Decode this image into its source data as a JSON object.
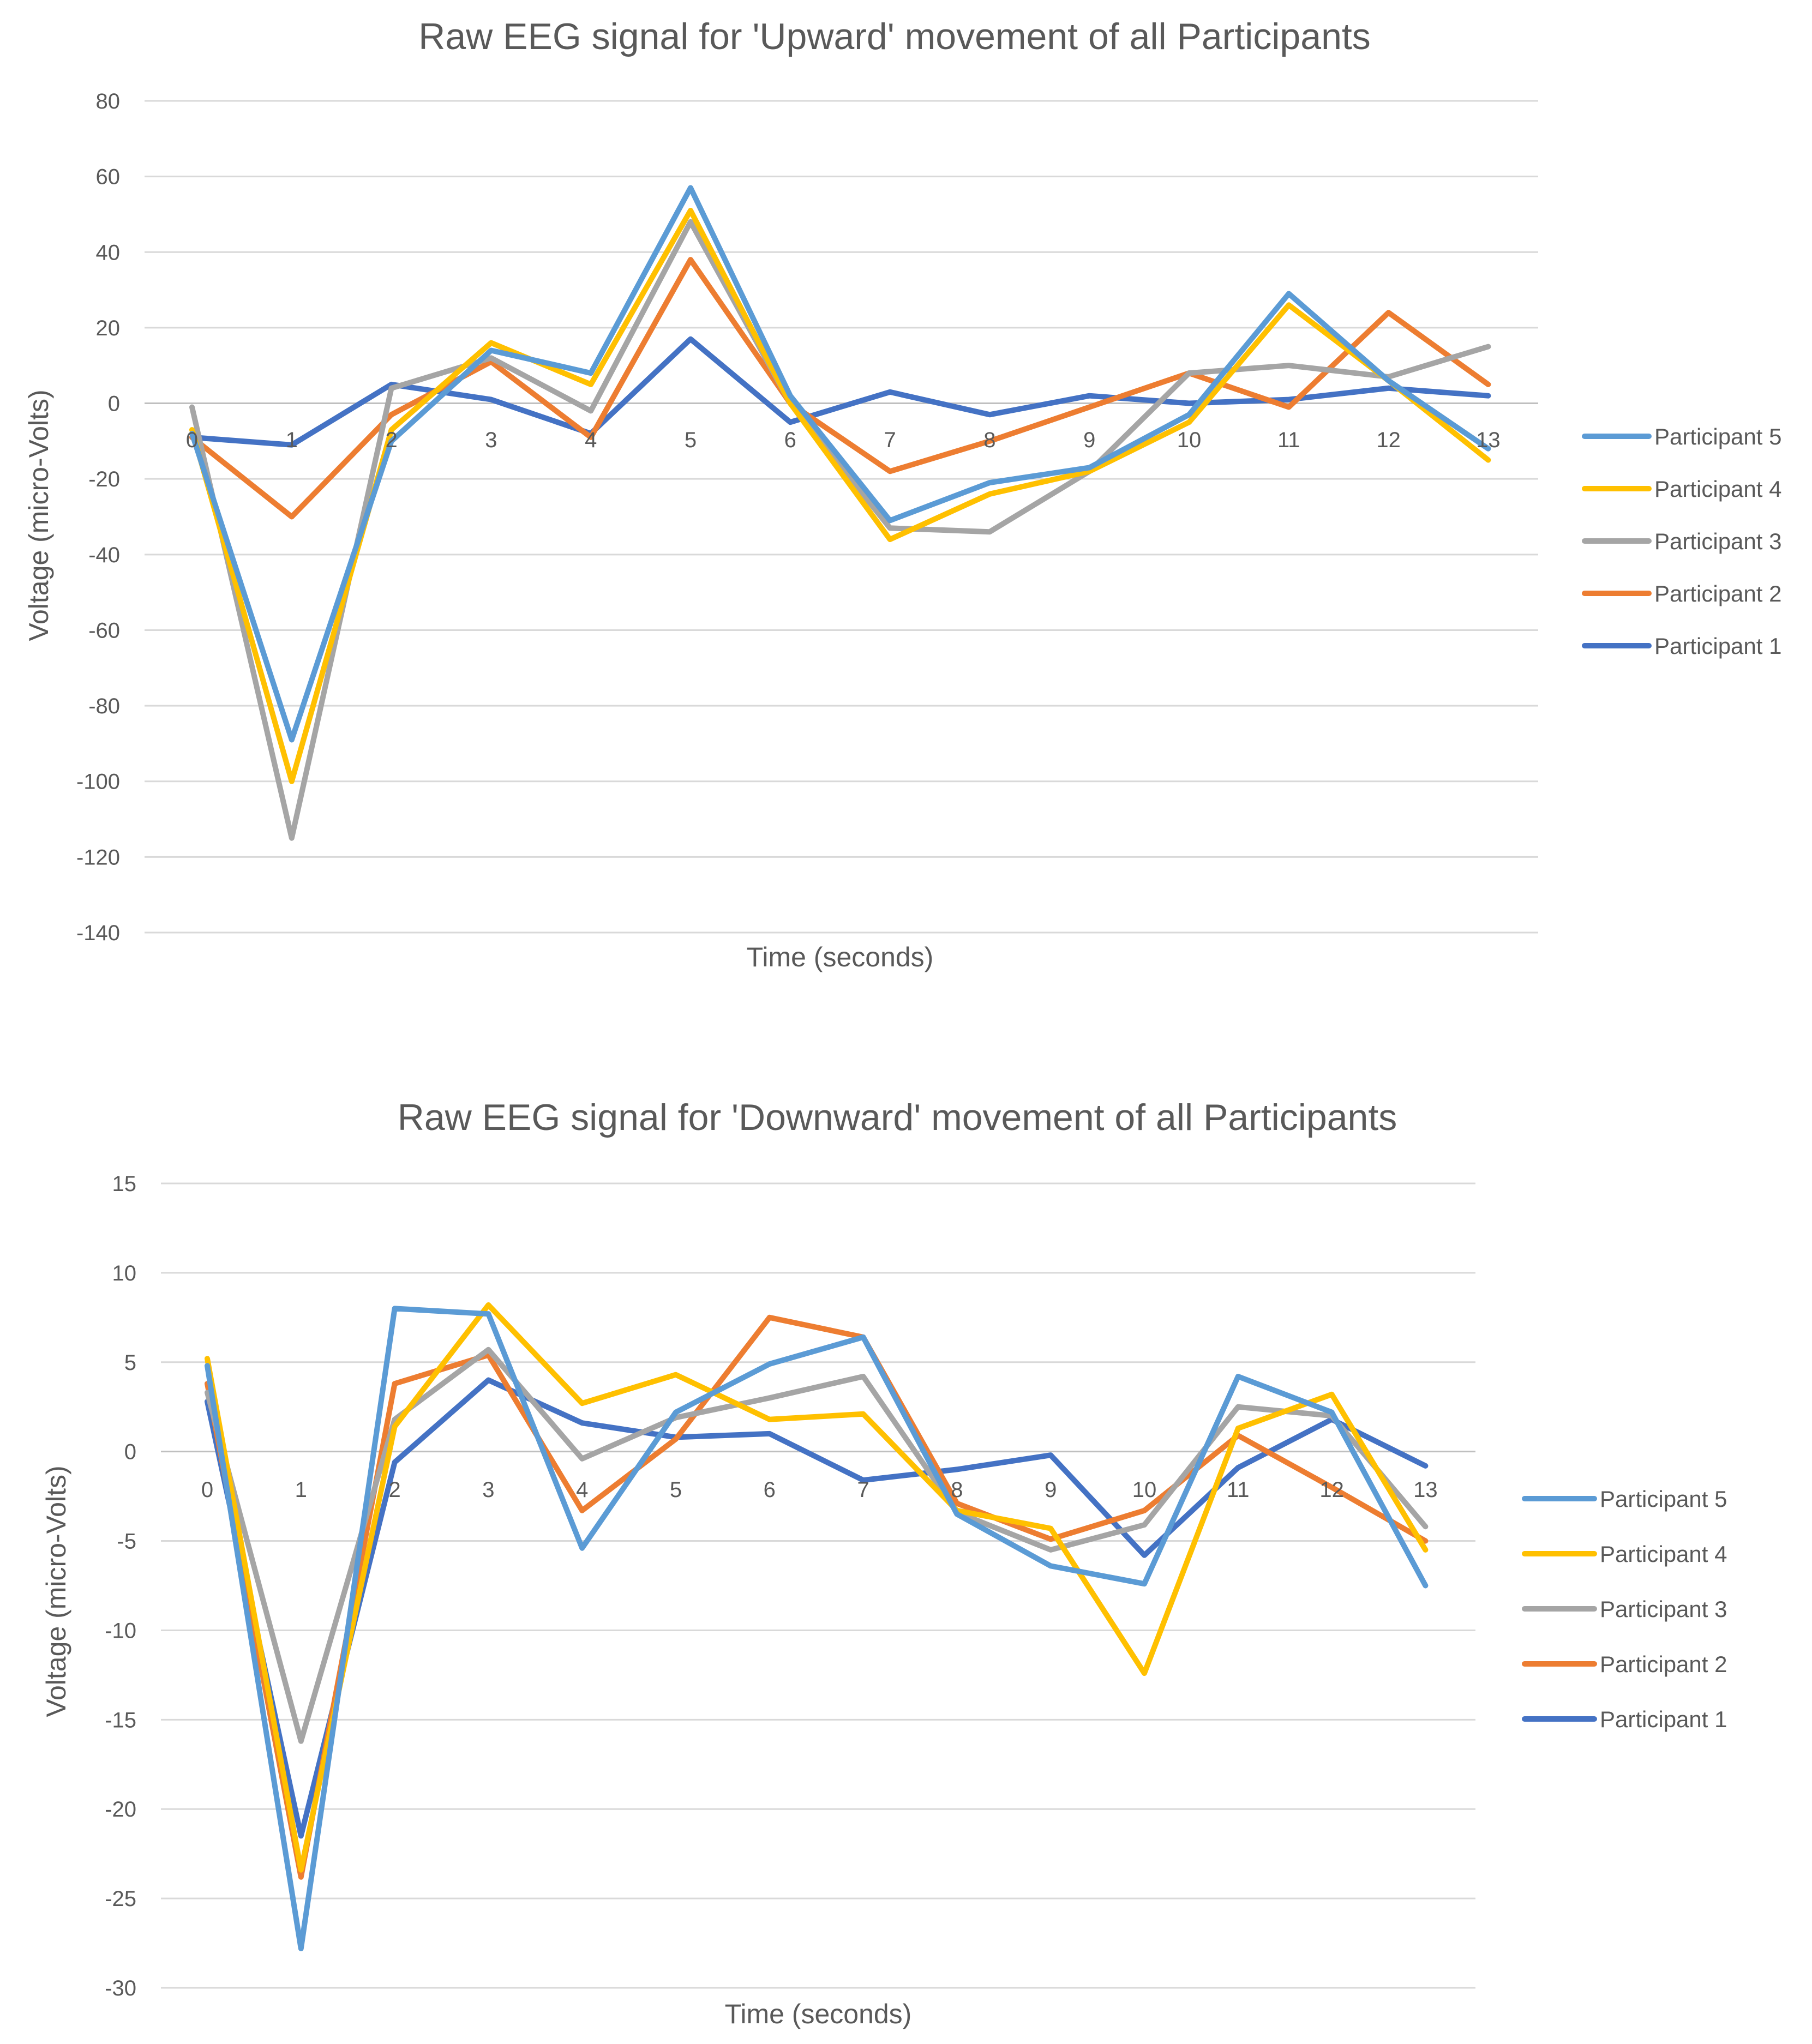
{
  "chart_data": [
    {
      "type": "line",
      "title": "Raw EEG signal for 'Upward' movement of all Participants",
      "xlabel": "Time (seconds)",
      "ylabel": "Voltage (micro-Volts)",
      "ylim": [
        -140,
        80
      ],
      "yticks": [
        "80",
        "60",
        "40",
        "20",
        "0",
        "-20",
        "-40",
        "-60",
        "-80",
        "-100",
        "-120",
        "-140"
      ],
      "x": [
        "0",
        "1",
        "2",
        "3",
        "4",
        "5",
        "6",
        "7",
        "8",
        "9",
        "10",
        "11",
        "12",
        "13"
      ],
      "grid": true,
      "legend_position": "right",
      "series": [
        {
          "name": "Participant 5",
          "color": "#5B9BD5",
          "values": [
            -8,
            -89,
            -10,
            14,
            8,
            57,
            2,
            -31,
            -21,
            -17,
            -3,
            29,
            6,
            -12
          ]
        },
        {
          "name": "Participant 4",
          "color": "#FFC000",
          "values": [
            -7,
            -100,
            -7,
            16,
            5,
            51,
            0,
            -36,
            -24,
            -18,
            -5,
            26,
            6,
            -15
          ]
        },
        {
          "name": "Participant 3",
          "color": "#A5A5A5",
          "values": [
            -1,
            -115,
            4,
            12,
            -2,
            48,
            0,
            -33,
            -34,
            -18,
            8,
            10,
            7,
            15
          ]
        },
        {
          "name": "Participant 2",
          "color": "#ED7D31",
          "values": [
            -9,
            -30,
            -3,
            11,
            -9,
            38,
            0,
            -18,
            -10,
            -1,
            8,
            -1,
            24,
            5
          ]
        },
        {
          "name": "Participant 1",
          "color": "#4472C4",
          "values": [
            -9,
            -11,
            5,
            1,
            -8,
            17,
            -5,
            3,
            -3,
            2,
            0,
            1,
            4,
            2
          ]
        }
      ]
    },
    {
      "type": "line",
      "title": "Raw EEG signal for 'Downward' movement of all Participants",
      "xlabel": "Time (seconds)",
      "ylabel": "Voltage (micro-Volts)",
      "ylim": [
        -30,
        15
      ],
      "yticks": [
        "15",
        "10",
        "5",
        "0",
        "-5",
        "-10",
        "-15",
        "-20",
        "-25",
        "-30"
      ],
      "x": [
        "0",
        "1",
        "2",
        "3",
        "4",
        "5",
        "6",
        "7",
        "8",
        "9",
        "10",
        "11",
        "12",
        "13"
      ],
      "grid": true,
      "legend_position": "right",
      "series": [
        {
          "name": "Participant 5",
          "color": "#5B9BD5",
          "values": [
            4.8,
            -27.8,
            8.0,
            7.7,
            -5.4,
            2.2,
            4.9,
            6.4,
            -3.5,
            -6.4,
            -7.4,
            4.2,
            2.2,
            -7.5
          ]
        },
        {
          "name": "Participant 4",
          "color": "#FFC000",
          "values": [
            5.2,
            -23.4,
            1.4,
            8.2,
            2.7,
            4.3,
            1.8,
            2.1,
            -3.3,
            -4.3,
            -12.4,
            1.3,
            3.2,
            -5.5
          ]
        },
        {
          "name": "Participant 3",
          "color": "#A5A5A5",
          "values": [
            3.3,
            -16.2,
            1.8,
            5.7,
            -0.4,
            1.9,
            3.0,
            4.2,
            -3.4,
            -5.5,
            -4.1,
            2.5,
            2.0,
            -4.2
          ]
        },
        {
          "name": "Participant 2",
          "color": "#ED7D31",
          "values": [
            3.8,
            -23.8,
            3.8,
            5.4,
            -3.3,
            0.7,
            7.5,
            6.4,
            -2.9,
            -4.9,
            -3.3,
            0.9,
            -2.0,
            -5.0
          ]
        },
        {
          "name": "Participant 1",
          "color": "#4472C4",
          "values": [
            2.8,
            -21.5,
            -0.6,
            4.0,
            1.6,
            0.8,
            1.0,
            -1.6,
            -1.0,
            -0.2,
            -5.8,
            -0.9,
            1.8,
            -0.8
          ]
        }
      ]
    }
  ]
}
